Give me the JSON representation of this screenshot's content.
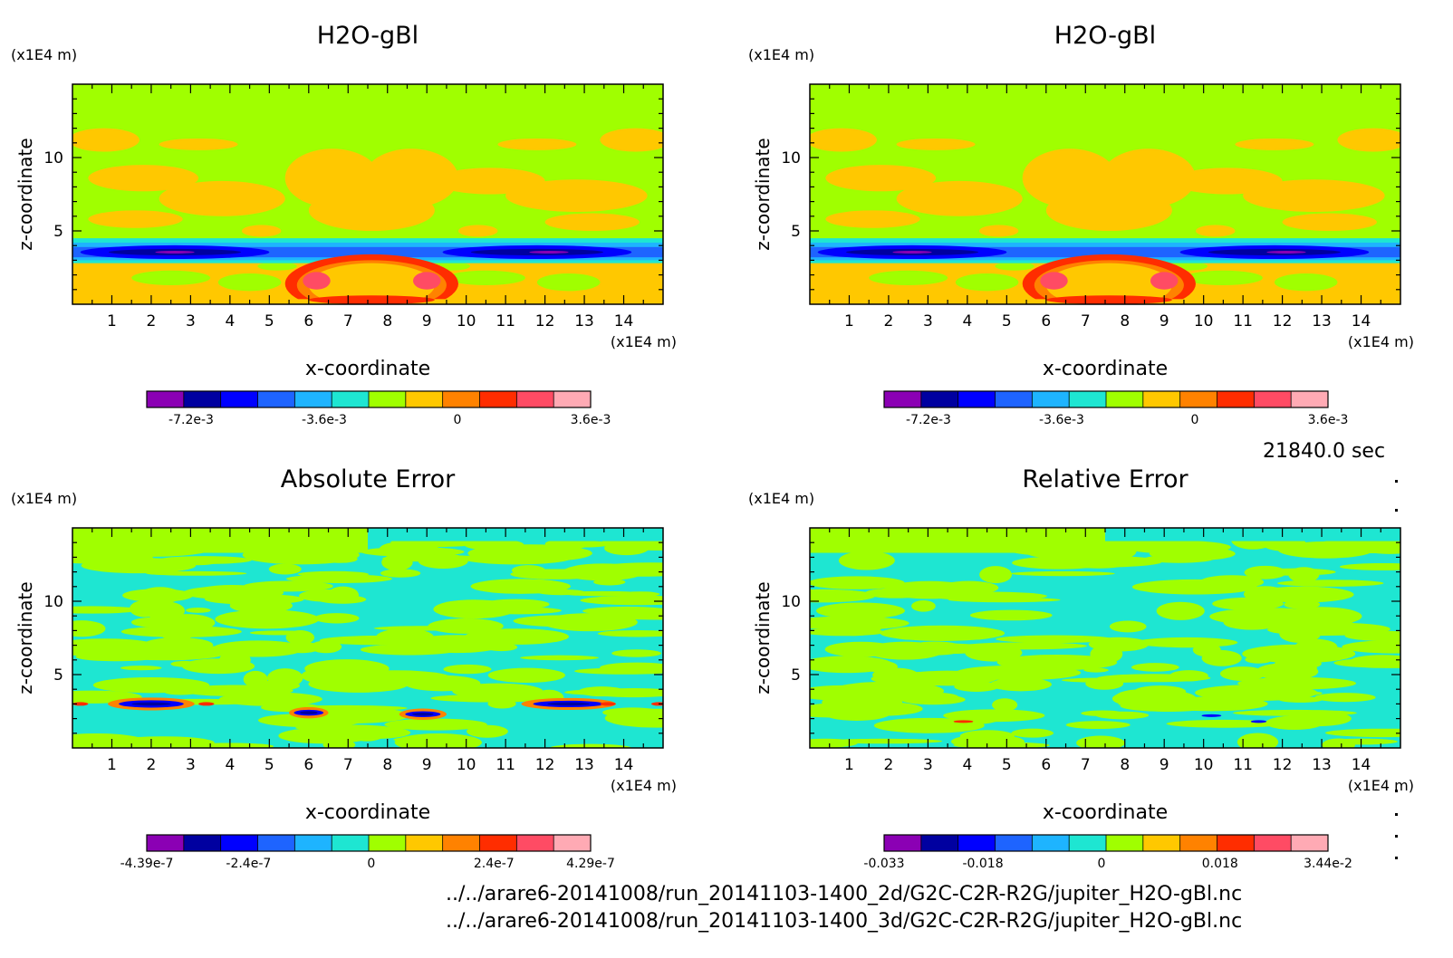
{
  "timestamp": "21840.0 sec",
  "files": [
    "../../arare6-20141008/run_20141103-1400_2d/G2C-C2R-R2G/jupiter_H2O-gBl.nc",
    "../../arare6-20141008/run_20141103-1400_3d/G2C-C2R-R2G/jupiter_H2O-gBl.nc"
  ],
  "colors": {
    "levels": [
      "#8b00b4",
      "#0000a0",
      "#0000ff",
      "#1e64ff",
      "#1eb4ff",
      "#1ee6d2",
      "#a0ff00",
      "#ffc800",
      "#ff8200",
      "#ff2d00",
      "#ff4b64",
      "#ffaab4"
    ]
  },
  "chart_data": [
    {
      "type": "heatmap",
      "title": "H2O-gBl",
      "xlabel": "x-coordinate",
      "ylabel": "z-coordinate",
      "x_unit": "(x1E4 m)",
      "y_unit": "(x1E4 m)",
      "x_ticks": [
        "1",
        "2",
        "3",
        "4",
        "5",
        "6",
        "7",
        "8",
        "9",
        "10",
        "11",
        "12",
        "13",
        "14"
      ],
      "y_ticks": [
        "5",
        "10"
      ],
      "xlim": [
        0,
        15
      ],
      "ylim": [
        0,
        15
      ],
      "colorbar": {
        "ticks": [
          "-7.2e-3",
          "-3.6e-3",
          "0",
          "3.6e-3"
        ],
        "range": [
          -0.0084,
          0.0036
        ]
      }
    },
    {
      "type": "heatmap",
      "title": "H2O-gBl",
      "xlabel": "x-coordinate",
      "ylabel": "z-coordinate",
      "x_unit": "(x1E4 m)",
      "y_unit": "(x1E4 m)",
      "x_ticks": [
        "1",
        "2",
        "3",
        "4",
        "5",
        "6",
        "7",
        "8",
        "9",
        "10",
        "11",
        "12",
        "13",
        "14"
      ],
      "y_ticks": [
        "5",
        "10"
      ],
      "xlim": [
        0,
        15
      ],
      "ylim": [
        0,
        15
      ],
      "colorbar": {
        "ticks": [
          "-7.2e-3",
          "-3.6e-3",
          "0",
          "3.6e-3"
        ],
        "range": [
          -0.0084,
          0.0036
        ]
      }
    },
    {
      "type": "heatmap",
      "title": "Absolute Error",
      "xlabel": "x-coordinate",
      "ylabel": "z-coordinate",
      "x_unit": "(x1E4 m)",
      "y_unit": "(x1E4 m)",
      "x_ticks": [
        "1",
        "2",
        "3",
        "4",
        "5",
        "6",
        "7",
        "8",
        "9",
        "10",
        "11",
        "12",
        "13",
        "14"
      ],
      "y_ticks": [
        "5",
        "10"
      ],
      "xlim": [
        0,
        15
      ],
      "ylim": [
        0,
        15
      ],
      "colorbar": {
        "ticks": [
          "-4.39e-7",
          "-2.4e-7",
          "0",
          "2.4e-7",
          "4.29e-7"
        ],
        "range": [
          -4.39e-07,
          4.29e-07
        ]
      }
    },
    {
      "type": "heatmap",
      "title": "Relative Error",
      "xlabel": "x-coordinate",
      "ylabel": "z-coordinate",
      "x_unit": "(x1E4 m)",
      "y_unit": "(x1E4 m)",
      "x_ticks": [
        "1",
        "2",
        "3",
        "4",
        "5",
        "6",
        "7",
        "8",
        "9",
        "10",
        "11",
        "12",
        "13",
        "14"
      ],
      "y_ticks": [
        "5",
        "10"
      ],
      "xlim": [
        0,
        15
      ],
      "ylim": [
        0,
        15
      ],
      "colorbar": {
        "ticks": [
          "-0.033",
          "-0.018",
          "0",
          "0.018",
          "3.44e-2"
        ],
        "range": [
          -0.033,
          0.0344
        ]
      }
    }
  ]
}
